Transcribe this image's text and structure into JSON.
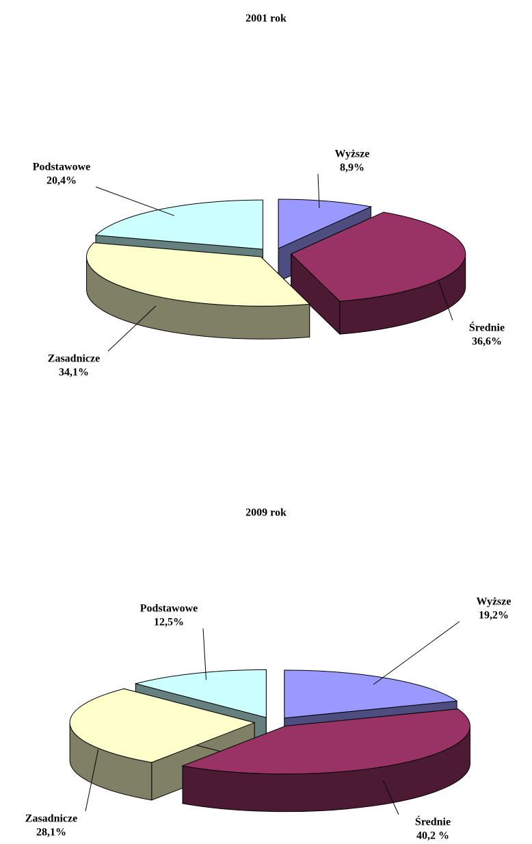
{
  "chart_data": [
    {
      "type": "pie",
      "title": "2001 rok",
      "categories": [
        "Wyższe",
        "Średnie",
        "Zasadnicze",
        "Podstawowe"
      ],
      "values": [
        8.9,
        36.6,
        34.1,
        20.4
      ],
      "value_labels": [
        "8,9%",
        "36,6%",
        "34,1%",
        "20,4%"
      ],
      "colors": [
        "#9999ff",
        "#993366",
        "#ffffcc",
        "#ccffff"
      ]
    },
    {
      "type": "pie",
      "title": "2009 rok",
      "categories": [
        "Wyższe",
        "Średnie",
        "Zasadnicze",
        "Podstawowe"
      ],
      "values": [
        19.2,
        40.2,
        28.1,
        12.5
      ],
      "value_labels": [
        "19,2%",
        "40,2 %",
        "28,1%",
        "12,5%"
      ],
      "colors": [
        "#9999ff",
        "#993366",
        "#ffffcc",
        "#ccffff"
      ]
    }
  ]
}
